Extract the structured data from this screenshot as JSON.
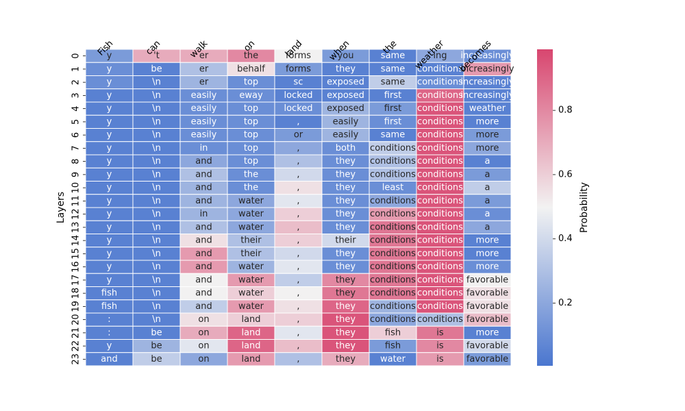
{
  "chart_data": {
    "type": "heatmap",
    "title": "",
    "xlabel": "",
    "ylabel": "Layers",
    "x_tokens": [
      "Fish",
      "can",
      "walk",
      "on",
      "land",
      "when",
      "the",
      "weather",
      "becomes"
    ],
    "y_labels": [
      "0",
      "1",
      "2",
      "3",
      "4",
      "5",
      "6",
      "7",
      "8",
      "9",
      "10",
      "11",
      "12",
      "13",
      "14",
      "15",
      "16",
      "17",
      "18",
      "19",
      "20",
      "21",
      "22",
      "23"
    ],
    "colorbar": {
      "label": "Probability",
      "ticks": [
        "0.2",
        "0.4",
        "0.6",
        "0.8"
      ],
      "tick_values": [
        0.2,
        0.4,
        0.6,
        0.8
      ],
      "range": [
        0.005,
        0.99
      ],
      "colormap": [
        "#4a76cf",
        "#f2f2f2",
        "#d8466f"
      ]
    },
    "cell_text": [
      [
        "y",
        "'t",
        "er",
        "the",
        "forms",
        "you",
        "same",
        "ing",
        "increasingly"
      ],
      [
        "y",
        "be",
        "er",
        "behalf",
        "forms",
        "they",
        "same",
        "conditions",
        "increasingly"
      ],
      [
        "y",
        "\\n",
        "er",
        "top",
        "sc",
        "exposed",
        "same",
        "conditions",
        "increasingly"
      ],
      [
        "y",
        "\\n",
        "easily",
        "eway",
        "locked",
        "exposed",
        "first",
        "conditions",
        "increasingly"
      ],
      [
        "y",
        "\\n",
        "easily",
        "top",
        "locked",
        "exposed",
        "first",
        "conditions",
        "weather"
      ],
      [
        "y",
        "\\n",
        "easily",
        "top",
        ",",
        "easily",
        "first",
        "conditions",
        "more"
      ],
      [
        "y",
        "\\n",
        "easily",
        "top",
        "or",
        "easily",
        "same",
        "conditions",
        "more"
      ],
      [
        "y",
        "\\n",
        "in",
        "top",
        ",",
        "both",
        "conditions",
        "conditions",
        "more"
      ],
      [
        "y",
        "\\n",
        "and",
        "top",
        ",",
        "they",
        "conditions",
        "conditions",
        "a"
      ],
      [
        "y",
        "\\n",
        "and",
        "the",
        ",",
        "they",
        "conditions",
        "conditions",
        "a"
      ],
      [
        "y",
        "\\n",
        "and",
        "the",
        ",",
        "they",
        "least",
        "conditions",
        "a"
      ],
      [
        "y",
        "\\n",
        "and",
        "water",
        ",",
        "they",
        "conditions",
        "conditions",
        "a"
      ],
      [
        "y",
        "\\n",
        "in",
        "water",
        ",",
        "they",
        "conditions",
        "conditions",
        "a"
      ],
      [
        "y",
        "\\n",
        "and",
        "water",
        ",",
        "they",
        "conditions",
        "conditions",
        "a"
      ],
      [
        "y",
        "\\n",
        "and",
        "their",
        ",",
        "their",
        "conditions",
        "conditions",
        "more"
      ],
      [
        "y",
        "\\n",
        "and",
        "their",
        ",",
        "they",
        "conditions",
        "conditions",
        "more"
      ],
      [
        "y",
        "\\n",
        "and",
        "water",
        ",",
        "they",
        "conditions",
        "conditions",
        "more"
      ],
      [
        "y",
        "\\n",
        "and",
        "water",
        ",",
        "they",
        "conditions",
        "conditions",
        "favorable"
      ],
      [
        "fish",
        "\\n",
        "and",
        "water",
        ",",
        "they",
        "conditions",
        "conditions",
        "favorable"
      ],
      [
        "fish",
        "\\n",
        "and",
        "water",
        ",",
        "they",
        "conditions",
        "conditions",
        "favorable"
      ],
      [
        ":",
        "\\n",
        "on",
        "land",
        ",",
        "they",
        "conditions",
        "conditions",
        "favorable"
      ],
      [
        ":",
        "be",
        "on",
        "land",
        ",",
        "they",
        "fish",
        "is",
        "more"
      ],
      [
        "y",
        "be",
        "on",
        "land",
        ",",
        "they",
        "fish",
        "is",
        "favorable"
      ],
      [
        "and",
        "be",
        "on",
        "land",
        ",",
        "they",
        "water",
        "is",
        "favorable"
      ]
    ],
    "probabilities": [
      [
        0.15,
        0.7,
        0.7,
        0.8,
        0.5,
        0.15,
        0.05,
        0.2,
        0.1
      ],
      [
        0.1,
        0.05,
        0.3,
        0.55,
        0.15,
        0.05,
        0.05,
        0.05,
        0.75
      ],
      [
        0.1,
        0.05,
        0.25,
        0.1,
        0.05,
        0.05,
        0.35,
        0.1,
        0.05
      ],
      [
        0.05,
        0.05,
        0.1,
        0.1,
        0.05,
        0.05,
        0.05,
        0.9,
        0.05
      ],
      [
        0.05,
        0.05,
        0.1,
        0.1,
        0.1,
        0.25,
        0.15,
        0.95,
        0.05
      ],
      [
        0.05,
        0.05,
        0.1,
        0.1,
        0.05,
        0.25,
        0.1,
        0.95,
        0.05
      ],
      [
        0.05,
        0.05,
        0.1,
        0.1,
        0.15,
        0.25,
        0.05,
        0.95,
        0.15
      ],
      [
        0.05,
        0.05,
        0.1,
        0.1,
        0.2,
        0.1,
        0.35,
        0.95,
        0.2
      ],
      [
        0.05,
        0.05,
        0.2,
        0.1,
        0.3,
        0.1,
        0.3,
        0.95,
        0.05
      ],
      [
        0.05,
        0.05,
        0.3,
        0.1,
        0.4,
        0.1,
        0.3,
        0.95,
        0.15
      ],
      [
        0.05,
        0.05,
        0.25,
        0.1,
        0.55,
        0.1,
        0.1,
        0.95,
        0.35
      ],
      [
        0.05,
        0.05,
        0.25,
        0.2,
        0.45,
        0.1,
        0.2,
        0.95,
        0.15
      ],
      [
        0.05,
        0.05,
        0.25,
        0.2,
        0.6,
        0.1,
        0.75,
        0.95,
        0.1
      ],
      [
        0.05,
        0.05,
        0.3,
        0.2,
        0.65,
        0.1,
        0.85,
        0.95,
        0.2
      ],
      [
        0.05,
        0.05,
        0.55,
        0.3,
        0.6,
        0.4,
        0.85,
        0.95,
        0.05
      ],
      [
        0.05,
        0.05,
        0.75,
        0.3,
        0.4,
        0.1,
        0.85,
        0.95,
        0.05
      ],
      [
        0.05,
        0.05,
        0.75,
        0.25,
        0.45,
        0.1,
        0.85,
        0.95,
        0.1
      ],
      [
        0.05,
        0.05,
        0.5,
        0.75,
        0.35,
        0.8,
        0.85,
        0.95,
        0.5
      ],
      [
        0.05,
        0.05,
        0.5,
        0.6,
        0.5,
        0.85,
        0.85,
        0.95,
        0.55
      ],
      [
        0.05,
        0.05,
        0.35,
        0.75,
        0.55,
        0.9,
        0.25,
        0.95,
        0.55
      ],
      [
        0.05,
        0.05,
        0.55,
        0.6,
        0.6,
        0.95,
        0.2,
        0.3,
        0.65
      ],
      [
        0.05,
        0.05,
        0.7,
        0.9,
        0.45,
        0.95,
        0.6,
        0.85,
        0.05
      ],
      [
        0.05,
        0.25,
        0.45,
        0.9,
        0.65,
        0.95,
        0.15,
        0.8,
        0.4
      ],
      [
        0.05,
        0.35,
        0.2,
        0.75,
        0.3,
        0.7,
        0.05,
        0.75,
        0.15
      ]
    ]
  }
}
